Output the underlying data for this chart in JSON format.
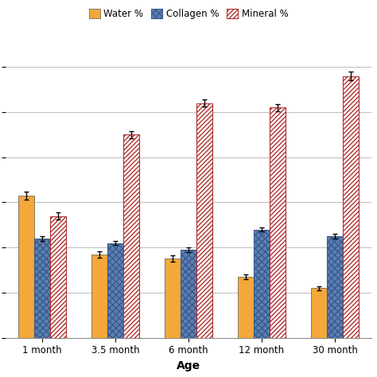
{
  "categories": [
    "1 month",
    "3.5 month",
    "6 month",
    "12 month",
    "30 month"
  ],
  "water": [
    31.5,
    18.5,
    17.5,
    13.5,
    11.0
  ],
  "water_err": [
    0.8,
    0.7,
    0.7,
    0.5,
    0.4
  ],
  "collagen": [
    22.0,
    21.0,
    19.5,
    24.0,
    22.5
  ],
  "collagen_err": [
    0.5,
    0.5,
    0.5,
    0.5,
    0.5
  ],
  "mineral": [
    27.0,
    45.0,
    52.0,
    51.0,
    58.0
  ],
  "mineral_err": [
    0.8,
    0.8,
    0.8,
    0.8,
    1.0
  ],
  "water_color": "#F4A83A",
  "collagen_color_face": "#5B7FB5",
  "collagen_color_edge": "#3A5A8A",
  "mineral_color": "#B03030",
  "bar_width": 0.22,
  "ylim": [
    0,
    65
  ],
  "xlabel": "Age",
  "grid_color": "#BBBBBB",
  "background_color": "#FFFFFF"
}
